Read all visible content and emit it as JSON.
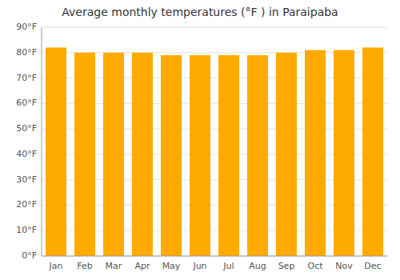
{
  "chart_data": {
    "type": "bar",
    "title": "Average monthly temperatures (°F ) in Paraipaba",
    "categories": [
      "Jan",
      "Feb",
      "Mar",
      "Apr",
      "May",
      "Jun",
      "Jul",
      "Aug",
      "Sep",
      "Oct",
      "Nov",
      "Dec"
    ],
    "values": [
      82,
      80,
      80,
      80,
      79,
      79,
      79,
      79,
      80,
      81,
      81,
      82
    ],
    "color": "#FFAA00",
    "ylim": [
      0,
      90
    ],
    "yticks": [
      {
        "value": 0,
        "label": "0°F"
      },
      {
        "value": 10,
        "label": "10°F"
      },
      {
        "value": 20,
        "label": "20°F"
      },
      {
        "value": 30,
        "label": "30°F"
      },
      {
        "value": 40,
        "label": "40°F"
      },
      {
        "value": 50,
        "label": "50°F"
      },
      {
        "value": 60,
        "label": "60°F"
      },
      {
        "value": 70,
        "label": "70°F"
      },
      {
        "value": 80,
        "label": "80°F"
      },
      {
        "value": 90,
        "label": "90°F"
      }
    ],
    "grid": true
  }
}
